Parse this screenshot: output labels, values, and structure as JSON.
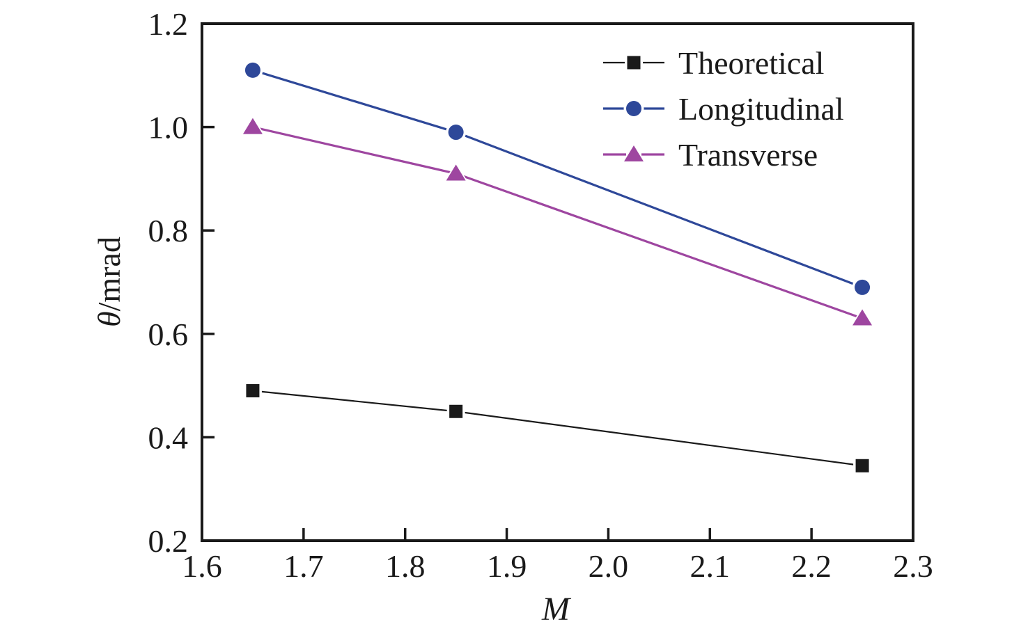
{
  "chart_data": {
    "type": "line",
    "title": "",
    "xlabel": "M",
    "ylabel": "θ/mrad",
    "xlim": [
      1.6,
      2.3
    ],
    "ylim": [
      0.2,
      1.2
    ],
    "x_ticks": [
      "1.6",
      "1.7",
      "1.8",
      "1.9",
      "2.0",
      "2.1",
      "2.2",
      "2.3"
    ],
    "y_ticks": [
      "0.2",
      "0.4",
      "0.6",
      "0.8",
      "1.0",
      "1.2"
    ],
    "grid": false,
    "legend": {
      "position": "top-right-inside",
      "entries": [
        "Theoretical",
        "Longitudinal",
        "Transverse"
      ]
    },
    "x": [
      1.65,
      1.85,
      2.25
    ],
    "series": [
      {
        "name": "Theoretical",
        "marker": "square",
        "color": "#1a1a1a",
        "line_width": 2.2,
        "values": [
          0.49,
          0.45,
          0.345
        ]
      },
      {
        "name": "Longitudinal",
        "marker": "circle",
        "color": "#2e4899",
        "line_width": 3.2,
        "values": [
          1.11,
          0.99,
          0.69
        ]
      },
      {
        "name": "Transverse",
        "marker": "triangle",
        "color": "#9e46a0",
        "line_width": 3.2,
        "values": [
          1.0,
          0.91,
          0.63
        ]
      }
    ]
  }
}
